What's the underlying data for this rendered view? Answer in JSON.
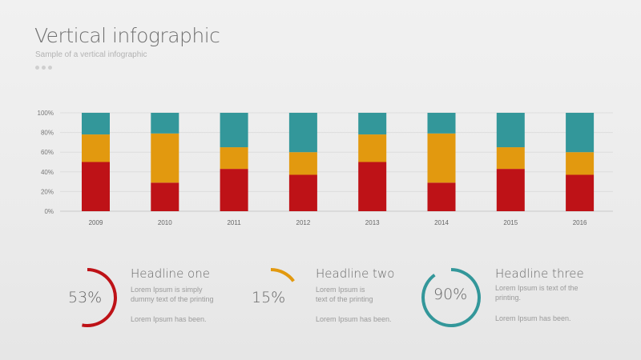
{
  "header": {
    "title": "Vertical infographic",
    "subtitle": "Sample of a vertical infographic"
  },
  "colors": {
    "red": "#be1217",
    "orange": "#e2990f",
    "teal": "#33979a"
  },
  "chart_data": {
    "type": "bar",
    "stacked": true,
    "categories": [
      "2009",
      "2010",
      "2011",
      "2012",
      "2013",
      "2014",
      "2015",
      "2016"
    ],
    "series": [
      {
        "color": "#be1217",
        "values": [
          50,
          29,
          43,
          37,
          50,
          29,
          43,
          37
        ]
      },
      {
        "color": "#e2990f",
        "values": [
          28,
          50,
          22,
          23,
          28,
          50,
          22,
          23
        ]
      },
      {
        "color": "#33979a",
        "values": [
          22,
          21,
          35,
          40,
          22,
          21,
          35,
          40
        ]
      }
    ],
    "yticks": [
      "0%",
      "20%",
      "40%",
      "60%",
      "80%",
      "100%"
    ],
    "ylim": [
      0,
      100
    ],
    "grid": true
  },
  "stats": [
    {
      "percent": "53%",
      "value": 53,
      "color": "#be1217",
      "headline": "Headline one",
      "text1": "Lorem Ipsum is simply\ndummy text of the printing",
      "text2": "Lorem Ipsum has been."
    },
    {
      "percent": "15%",
      "value": 15,
      "color": "#e2990f",
      "headline": "Headline two",
      "text1": "Lorem Ipsum is\ntext of the printing",
      "text2": "Lorem Ipsum has been."
    },
    {
      "percent": "90%",
      "value": 90,
      "color": "#33979a",
      "headline": "Headline three",
      "text1": "Lorem Ipsum is text of the\nprinting.",
      "text2": "Lorem Ipsum has been."
    }
  ]
}
